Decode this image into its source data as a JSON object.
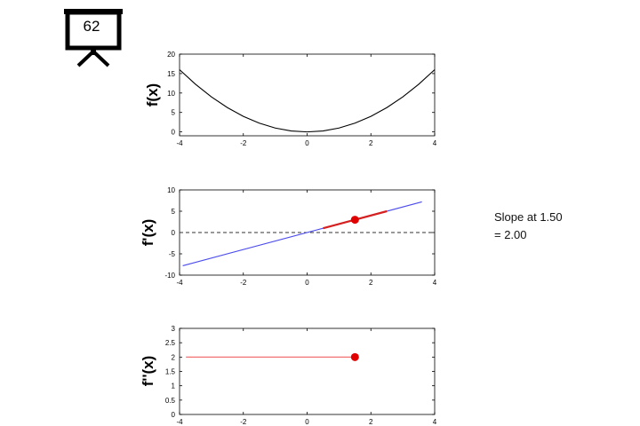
{
  "badge": {
    "number": "62",
    "icon": "presentation-board-icon"
  },
  "annotation": {
    "line1": "Slope at 1.50",
    "line2": "= 2.00"
  },
  "colors": {
    "f_curve": "#000000",
    "fprime_line": "#4a4af0",
    "tangent": "#d42020",
    "marker": "#e00000",
    "fsecond_line": "#f06060",
    "zero_line": "#333333"
  },
  "chart_data": [
    {
      "type": "line",
      "ylabel": "f(x)",
      "xlim": [
        -4,
        4
      ],
      "ylim": [
        -1,
        20
      ],
      "x_ticks": [
        "-4",
        "-2",
        "0",
        "2",
        "4"
      ],
      "y_ticks": [
        "0",
        "5",
        "10",
        "15",
        "20"
      ],
      "series": [
        {
          "x": [
            -4,
            -3.5,
            -3,
            -2.5,
            -2,
            -1.5,
            -1,
            -0.5,
            0,
            0.5,
            1,
            1.5,
            2,
            2.5,
            3,
            3.5,
            4
          ],
          "y": [
            16,
            12.25,
            9,
            6.25,
            4,
            2.25,
            1,
            0.25,
            0,
            0.25,
            1,
            2.25,
            4,
            6.25,
            9,
            12.25,
            16
          ]
        }
      ]
    },
    {
      "type": "line",
      "ylabel": "f'(x)",
      "xlim": [
        -4,
        4
      ],
      "ylim": [
        -10,
        10
      ],
      "x_ticks": [
        "-4",
        "-2",
        "0",
        "2",
        "4"
      ],
      "y_ticks": [
        "-10",
        "-5",
        "0",
        "5",
        "10"
      ],
      "series": [
        {
          "x": [
            -3.9,
            3.6
          ],
          "y": [
            -7.8,
            7.2
          ]
        }
      ],
      "zero_line": true,
      "tangent": {
        "x": [
          0.5,
          2.5
        ],
        "y": [
          1.0,
          5.0
        ]
      },
      "marker": {
        "x": 1.5,
        "y": 3.0
      }
    },
    {
      "type": "line",
      "ylabel": "f''(x)",
      "xlim": [
        -4,
        4
      ],
      "ylim": [
        0,
        3
      ],
      "x_ticks": [
        "-4",
        "-2",
        "0",
        "2",
        "4"
      ],
      "y_ticks": [
        "0",
        "0.5",
        "1",
        "1.5",
        "2",
        "2.5",
        "3"
      ],
      "series": [
        {
          "x": [
            -3.8,
            1.5
          ],
          "y": [
            2,
            2
          ]
        }
      ],
      "marker": {
        "x": 1.5,
        "y": 2
      }
    }
  ]
}
